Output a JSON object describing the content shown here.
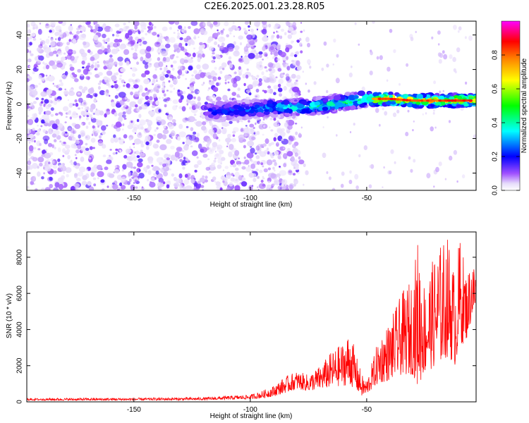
{
  "title": "C2E6.2025.001.23.28.R05",
  "chart_data": [
    {
      "type": "heatmap",
      "title": "",
      "xlabel": "Height of straight line (km)",
      "ylabel": "Frequency (Hz)",
      "xlim": [
        -196,
        -3
      ],
      "ylim": [
        -50,
        48
      ],
      "xticks": [
        -150,
        -100,
        -50
      ],
      "yticks": [
        -40,
        -20,
        0,
        20,
        40
      ],
      "colorbar": {
        "label": "Normalized spectral amplitude",
        "range": [
          0,
          1
        ],
        "ticks": [
          0.0,
          0.2,
          0.4,
          0.6,
          0.8
        ],
        "colormap": [
          "#ffffff",
          "#c8b4f0",
          "#8c00ff",
          "#0000ff",
          "#00ffff",
          "#00ff00",
          "#ffff00",
          "#ff8000",
          "#ff0000",
          "#ff00ff"
        ]
      },
      "ridge": {
        "x": [
          -120,
          -110,
          -100,
          -90,
          -80,
          -70,
          -60,
          -50,
          -45,
          -40,
          -30,
          -20,
          -10,
          -3
        ],
        "freq": [
          -4,
          -4,
          -3,
          -2,
          -2,
          -1,
          1,
          3,
          3,
          3,
          2,
          2,
          2,
          2
        ],
        "amplitude": [
          0.25,
          0.3,
          0.35,
          0.4,
          0.45,
          0.45,
          0.5,
          0.6,
          0.85,
          0.9,
          0.85,
          0.85,
          0.9,
          0.9
        ]
      },
      "noise_region_x": [
        -196,
        -98
      ]
    },
    {
      "type": "line",
      "title": "",
      "xlabel": "Height of straight line (km)",
      "ylabel": "SNR (10 * v/v)",
      "xlim": [
        -196,
        -3
      ],
      "ylim": [
        0,
        9400
      ],
      "xticks": [
        -150,
        -100,
        -50
      ],
      "yticks": [
        0,
        2000,
        4000,
        6000,
        8000
      ],
      "color": "#ff0000",
      "envelope": {
        "x": [
          -196,
          -150,
          -120,
          -100,
          -95,
          -90,
          -85,
          -80,
          -75,
          -70,
          -65,
          -60,
          -57,
          -55,
          -52,
          -50,
          -47,
          -45,
          -40,
          -35,
          -30,
          -28,
          -25,
          -20,
          -15,
          -12,
          -10,
          -7,
          -5,
          -3
        ],
        "low": [
          80,
          80,
          100,
          150,
          200,
          300,
          500,
          700,
          600,
          700,
          800,
          900,
          900,
          700,
          300,
          400,
          800,
          1000,
          1200,
          1500,
          1500,
          800,
          1600,
          2000,
          2500,
          2000,
          3000,
          3500,
          4500,
          5000
        ],
        "high": [
          200,
          220,
          250,
          400,
          600,
          900,
          1400,
          1700,
          1500,
          2000,
          2800,
          3300,
          4000,
          2800,
          1500,
          1200,
          2500,
          3500,
          4500,
          6000,
          7000,
          9200,
          6500,
          8500,
          9200,
          7000,
          9300,
          7000,
          8000,
          7500
        ]
      }
    }
  ]
}
